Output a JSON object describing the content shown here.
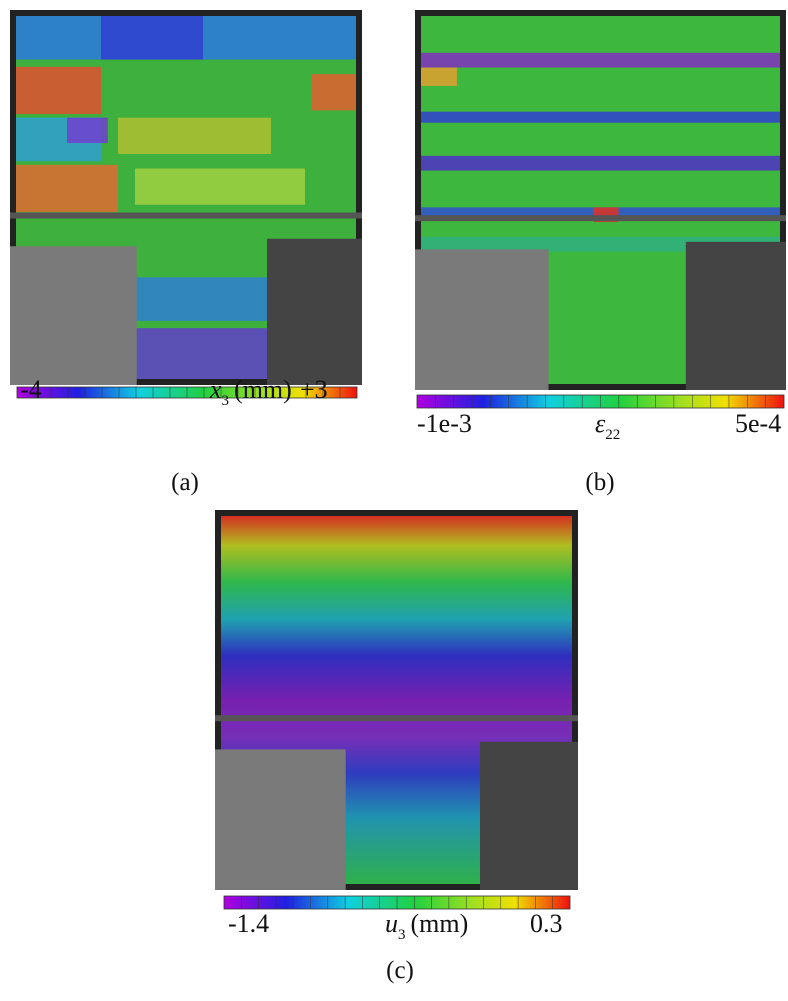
{
  "panels": [
    {
      "caption": "(a)",
      "colorbar": {
        "min_label": "-4",
        "max_label": "+3",
        "symbol": "x",
        "subscript": "3",
        "unit": "(mm)"
      }
    },
    {
      "caption": "(b)",
      "colorbar": {
        "min_label": "-1e-3",
        "max_label": "5e-4",
        "symbol": "ε",
        "subscript": "22"
      }
    },
    {
      "caption": "(c)",
      "colorbar": {
        "min_label": "-1.4",
        "max_label": "0.3",
        "symbol": "u",
        "subscript": "3",
        "unit": "(mm)"
      }
    }
  ]
}
